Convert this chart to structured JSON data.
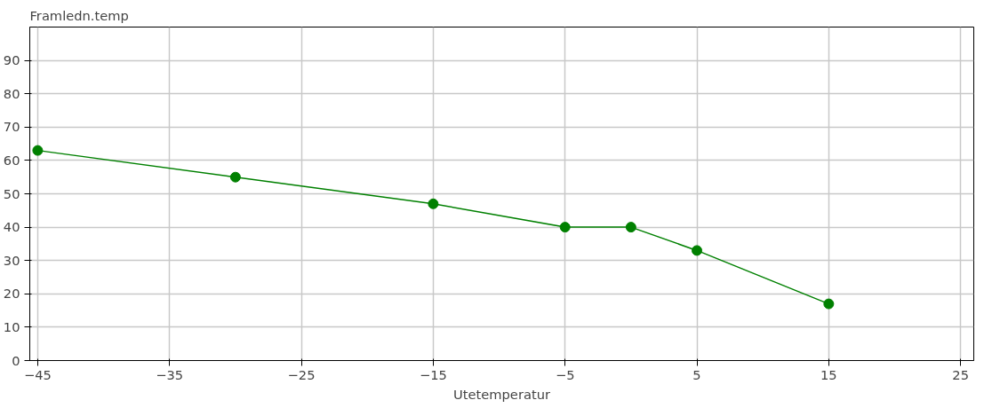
{
  "chart_data": {
    "type": "line",
    "ylabel": "Framledn.temp",
    "xlabel": "Utetemperatur",
    "x": [
      -45,
      -30,
      -15,
      -5,
      0,
      5,
      15
    ],
    "series": [
      {
        "color": "#008000",
        "values": [
          63,
          55,
          47,
          40,
          40,
          33,
          17
        ]
      }
    ],
    "xlim": [
      -45.6,
      26
    ],
    "xticks": [
      -45,
      -35,
      -25,
      -15,
      -5,
      5,
      15,
      25
    ],
    "ylim": [
      0,
      100
    ],
    "yticks": [
      0,
      10,
      20,
      30,
      40,
      50,
      60,
      70,
      80,
      90
    ],
    "grid": true,
    "marker": "circle",
    "line_style": "solid"
  }
}
